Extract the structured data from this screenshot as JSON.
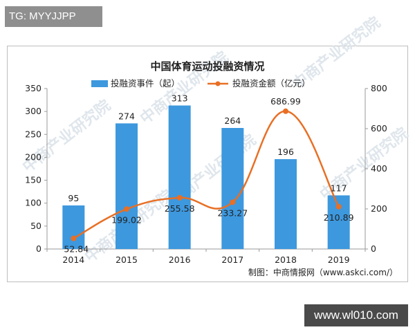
{
  "tag_label": "TG: MYYJJPP",
  "site_label": "www.wl010.com",
  "watermark_text": "中商产业研究院",
  "source_note": "制图：中商情报网（www.askci.com/）",
  "colors": {
    "bar": "#3d98de",
    "line": "#e86f24",
    "text": "#222222",
    "axis": "#9a9a9a"
  },
  "chart_data": {
    "type": "bar",
    "title": "中国体育运动投融资情况",
    "categories": [
      "2014",
      "2015",
      "2016",
      "2017",
      "2018",
      "2019"
    ],
    "series": [
      {
        "name": "投融资事件（起）",
        "type": "bar",
        "axis": "left",
        "values": [
          95,
          274,
          313,
          264,
          196,
          117
        ],
        "labels": [
          "95",
          "274",
          "313",
          "264",
          "196",
          "117"
        ]
      },
      {
        "name": "投融资金额（亿元）",
        "type": "line",
        "axis": "right",
        "values": [
          52.84,
          199.02,
          255.58,
          233.27,
          686.99,
          210.89
        ],
        "labels": [
          "52.84",
          "199.02",
          "255.58",
          "233.27",
          "686.99",
          "210.89"
        ]
      }
    ],
    "y_left": {
      "min": 0,
      "max": 350,
      "ticks": [
        "0",
        "50",
        "100",
        "150",
        "200",
        "250",
        "300",
        "350"
      ]
    },
    "y_right": {
      "min": 0,
      "max": 800,
      "ticks": [
        "0",
        "200",
        "400",
        "600",
        "800"
      ]
    },
    "legend_position": "top",
    "grid": false
  }
}
